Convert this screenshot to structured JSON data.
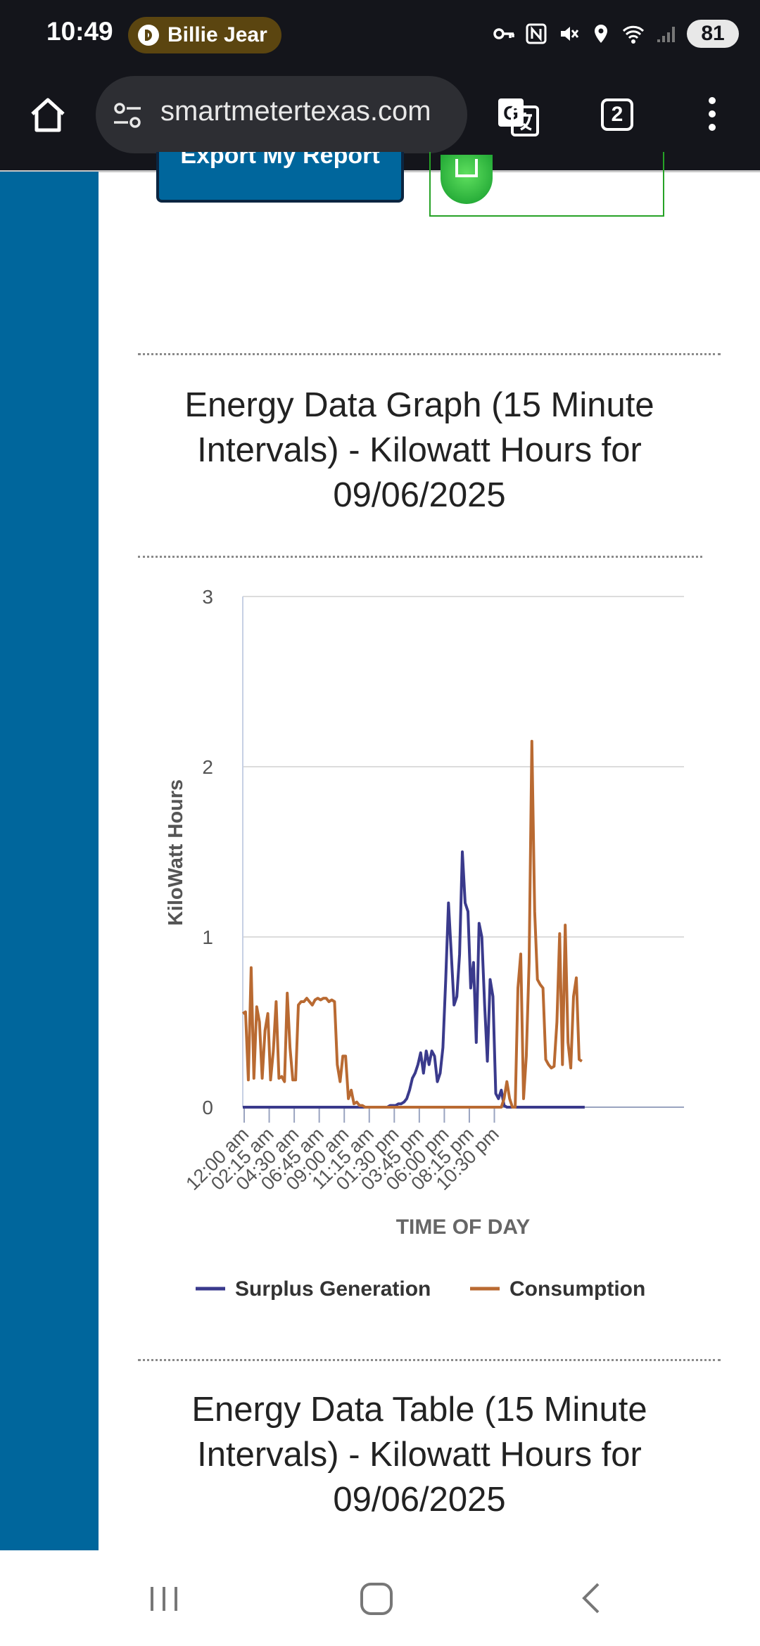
{
  "status_bar": {
    "time": "10:49",
    "media_title": "Billie Jear",
    "battery": "81"
  },
  "browser": {
    "url": "smartmetertexas.com",
    "tab_count": "2"
  },
  "page": {
    "export_button": "Export My Report",
    "graph_title": "Energy Data Graph (15 Minute Intervals) - Kilowatt Hours for 09/06/2025",
    "table_title": "Energy Data Table (15 Minute Intervals) - Kilowatt Hours for 09/06/2025"
  },
  "colors": {
    "accent": "#00669c",
    "surplus": "#3a3a8c",
    "consumption": "#b96a32",
    "grid": "#dcdcdc"
  },
  "chart_data": {
    "type": "line",
    "xlabel": "TIME OF DAY",
    "ylabel": "KiloWatt Hours",
    "ylim": [
      0,
      3
    ],
    "yticks": [
      0,
      1,
      2,
      3
    ],
    "x_interval_minutes": 15,
    "x_tick_labels": [
      "12:00 am",
      "02:15 am",
      "04:30 am",
      "06:45 am",
      "09:00 am",
      "11:15 am",
      "01:30 pm",
      "03:45 pm",
      "06:00 pm",
      "08:15 pm",
      "10:30 pm"
    ],
    "legend_position": "bottom",
    "series": [
      {
        "name": "Surplus Generation",
        "color": "#3a3a8c",
        "values": [
          0,
          0,
          0,
          0,
          0,
          0,
          0,
          0,
          0,
          0,
          0,
          0,
          0,
          0,
          0,
          0,
          0,
          0,
          0,
          0,
          0,
          0,
          0,
          0,
          0,
          0,
          0,
          0,
          0,
          0,
          0,
          0,
          0,
          0,
          0,
          0,
          0,
          0,
          0,
          0,
          0,
          0,
          0,
          0,
          0,
          0,
          0,
          0,
          0,
          0,
          0,
          0,
          0,
          0.01,
          0.01,
          0.01,
          0.02,
          0.02,
          0.03,
          0.05,
          0.1,
          0.17,
          0.2,
          0.25,
          0.32,
          0.2,
          0.33,
          0.25,
          0.33,
          0.3,
          0.15,
          0.2,
          0.35,
          0.75,
          1.2,
          0.9,
          0.6,
          0.65,
          0.9,
          1.5,
          1.2,
          1.15,
          0.7,
          0.85,
          0.38,
          1.08,
          1.0,
          0.6,
          0.27,
          0.75,
          0.65,
          0.08,
          0.05,
          0.1,
          0.01,
          0,
          0,
          0,
          0,
          0,
          0,
          0,
          0,
          0,
          0,
          0,
          0,
          0,
          0,
          0,
          0,
          0,
          0,
          0,
          0,
          0,
          0,
          0,
          0,
          0,
          0,
          0,
          0,
          0
        ]
      },
      {
        "name": "Consumption",
        "color": "#b96a32",
        "values": [
          0.55,
          0.56,
          0.16,
          0.82,
          0.17,
          0.59,
          0.5,
          0.17,
          0.45,
          0.55,
          0.16,
          0.33,
          0.62,
          0.17,
          0.18,
          0.15,
          0.67,
          0.35,
          0.16,
          0.16,
          0.6,
          0.62,
          0.62,
          0.64,
          0.62,
          0.6,
          0.63,
          0.64,
          0.63,
          0.64,
          0.64,
          0.62,
          0.63,
          0.62,
          0.25,
          0.15,
          0.3,
          0.3,
          0.05,
          0.1,
          0.02,
          0.03,
          0.01,
          0.01,
          0,
          0,
          0,
          0,
          0,
          0,
          0,
          0,
          0,
          0,
          0,
          0,
          0,
          0,
          0,
          0,
          0,
          0,
          0,
          0,
          0,
          0,
          0,
          0,
          0,
          0,
          0,
          0,
          0,
          0,
          0,
          0,
          0,
          0,
          0,
          0,
          0,
          0,
          0,
          0,
          0,
          0,
          0,
          0,
          0,
          0,
          0,
          0,
          0,
          0,
          0.05,
          0.15,
          0.05,
          0,
          0,
          0.7,
          0.9,
          0.05,
          0.3,
          0.85,
          2.15,
          1.15,
          0.75,
          0.72,
          0.7,
          0.28,
          0.25,
          0.23,
          0.24,
          0.5,
          1.02,
          0.25,
          1.07,
          0.38,
          0.23,
          0.65,
          0.76,
          0.28,
          0.27
        ]
      }
    ]
  }
}
